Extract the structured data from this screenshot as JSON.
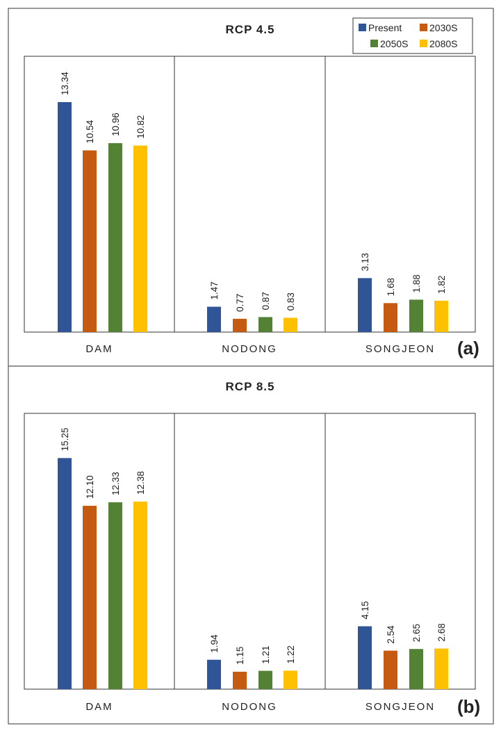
{
  "colors": {
    "Present": "#2f5597",
    "2030S": "#c55a11",
    "2050S": "#548235",
    "2080S": "#ffc000"
  },
  "chart_data": [
    {
      "type": "bar",
      "title": "RCP 4.5",
      "panel_label": "(a)",
      "categories": [
        "DAM",
        "NODONG",
        "SONGJEON"
      ],
      "series": [
        {
          "name": "Present",
          "values": [
            13.34,
            1.47,
            3.13
          ]
        },
        {
          "name": "2030S",
          "values": [
            10.54,
            0.77,
            1.68
          ]
        },
        {
          "name": "2050S",
          "values": [
            10.96,
            0.87,
            1.88
          ]
        },
        {
          "name": "2080S",
          "values": [
            10.82,
            0.83,
            1.82
          ]
        }
      ],
      "value_labels": [
        [
          "13.34",
          "1.47",
          "3.13"
        ],
        [
          "10.54",
          "0.77",
          "1.68"
        ],
        [
          "10.96",
          "0.87",
          "1.88"
        ],
        [
          "10.82",
          "0.83",
          "1.82"
        ]
      ],
      "ylim": [
        0,
        16
      ],
      "legend": "top-right",
      "grid": false
    },
    {
      "type": "bar",
      "title": "RCP 8.5",
      "panel_label": "(b)",
      "categories": [
        "DAM",
        "NODONG",
        "SONGJEON"
      ],
      "series": [
        {
          "name": "Present",
          "values": [
            15.25,
            1.94,
            4.15
          ]
        },
        {
          "name": "2030S",
          "values": [
            12.1,
            1.15,
            2.54
          ]
        },
        {
          "name": "2050S",
          "values": [
            12.33,
            1.21,
            2.65
          ]
        },
        {
          "name": "2080S",
          "values": [
            12.38,
            1.22,
            2.68
          ]
        }
      ],
      "value_labels": [
        [
          "15.25",
          "1.94",
          "4.15"
        ],
        [
          "12.10",
          "1.15",
          "2.54"
        ],
        [
          "12.33",
          "1.21",
          "2.65"
        ],
        [
          "12.38",
          "1.22",
          "2.68"
        ]
      ],
      "ylim": [
        0,
        18.2
      ],
      "legend": "none",
      "grid": false
    }
  ]
}
